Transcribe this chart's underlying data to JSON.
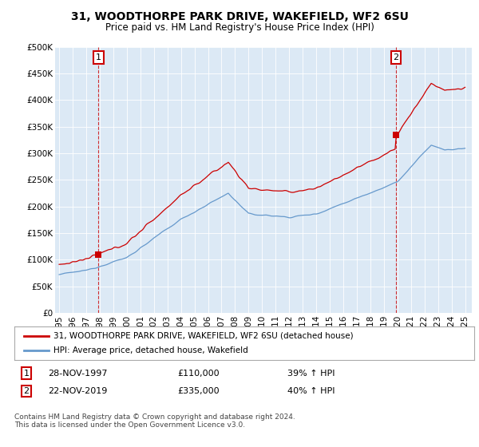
{
  "title_line1": "31, WOODTHORPE PARK DRIVE, WAKEFIELD, WF2 6SU",
  "title_line2": "Price paid vs. HM Land Registry's House Price Index (HPI)",
  "ylabel_ticks": [
    "£0",
    "£50K",
    "£100K",
    "£150K",
    "£200K",
    "£250K",
    "£300K",
    "£350K",
    "£400K",
    "£450K",
    "£500K"
  ],
  "ytick_vals": [
    0,
    50000,
    100000,
    150000,
    200000,
    250000,
    300000,
    350000,
    400000,
    450000,
    500000
  ],
  "ylim": [
    0,
    500000
  ],
  "xlim_start": 1994.7,
  "xlim_end": 2025.5,
  "sale1_x": 1997.91,
  "sale1_y": 110000,
  "sale2_x": 2019.89,
  "sale2_y": 335000,
  "legend_label_red": "31, WOODTHORPE PARK DRIVE, WAKEFIELD, WF2 6SU (detached house)",
  "legend_label_blue": "HPI: Average price, detached house, Wakefield",
  "annotation1_label": "1",
  "annotation2_label": "2",
  "table_row1": [
    "1",
    "28-NOV-1997",
    "£110,000",
    "39% ↑ HPI"
  ],
  "table_row2": [
    "2",
    "22-NOV-2019",
    "£335,000",
    "40% ↑ HPI"
  ],
  "footnote": "Contains HM Land Registry data © Crown copyright and database right 2024.\nThis data is licensed under the Open Government Licence v3.0.",
  "red_color": "#cc0000",
  "blue_color": "#6699cc",
  "chart_bg_color": "#dce9f5",
  "background_color": "#ffffff",
  "grid_color": "#ffffff"
}
